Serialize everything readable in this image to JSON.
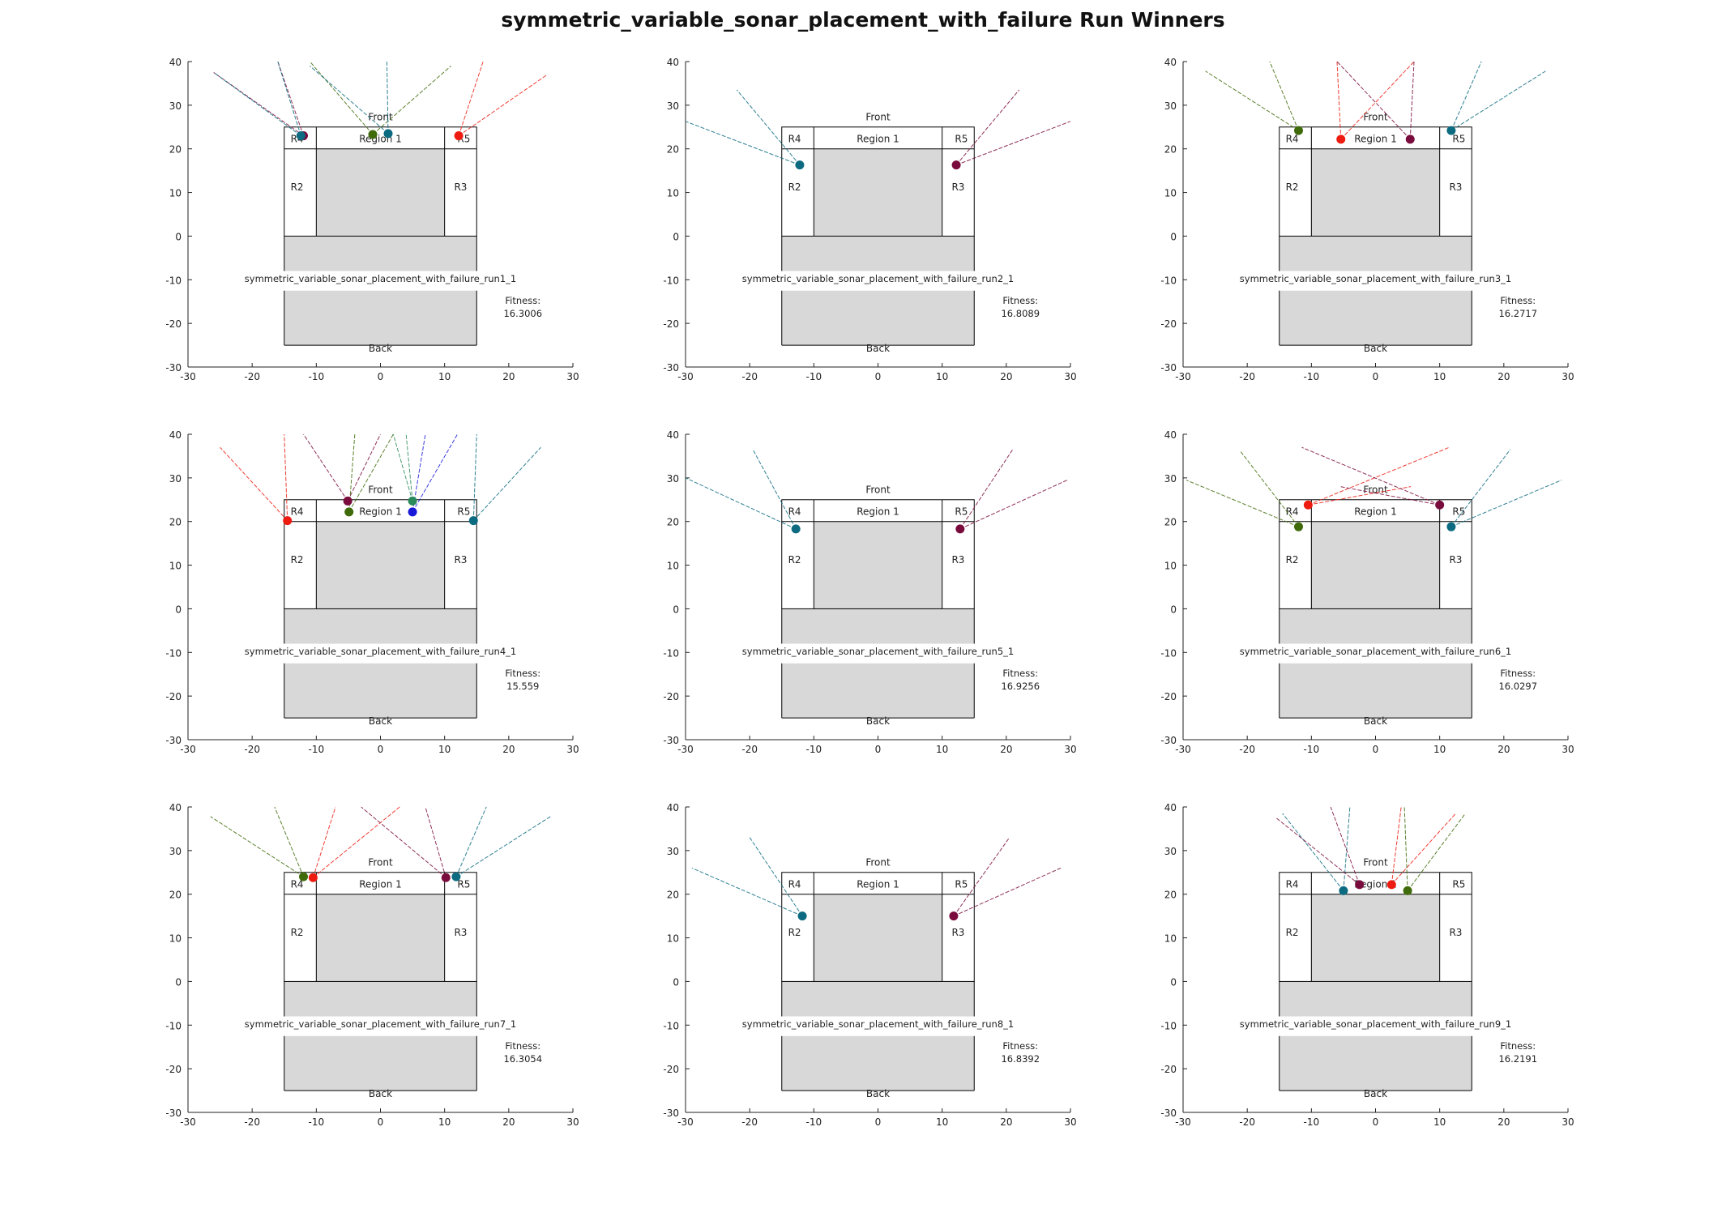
{
  "figure": {
    "title": "symmetric_variable_sonar_placement_with_failure Run Winners"
  },
  "labels": {
    "front": "Front",
    "back": "Back",
    "region1": "Region 1",
    "r2": "R2",
    "r3": "R3",
    "r4": "R4",
    "r5": "R5",
    "fitness_label": "Fitness:"
  },
  "colors": {
    "teal": "#0c6b80",
    "maroon": "#7a0c3d",
    "red": "#ee1b10",
    "olive": "#3f6b0a",
    "blue": "#1818d8",
    "green": "#2a8a5a",
    "purple": "#6a3aa8",
    "grey_fill": "#d8d8d8",
    "outline": "#000000"
  },
  "chart_data": [
    {
      "type": "scatter",
      "name": "symmetric_variable_sonar_placement_with_failure_run1_1",
      "fitness": "16.3006",
      "xlim": [
        -30,
        30
      ],
      "ylim": [
        -30,
        40
      ],
      "xticks": [
        -30,
        -20,
        -10,
        0,
        10,
        20,
        30
      ],
      "yticks": [
        -30,
        -20,
        -10,
        0,
        10,
        20,
        30,
        40
      ],
      "sensors": [
        {
          "x": -12,
          "y": 23,
          "color": "maroon",
          "beams": [
            [
              -26,
              37.5
            ],
            [
              -16,
              40
            ]
          ]
        },
        {
          "x": -12.4,
          "y": 23,
          "color": "teal",
          "beams": [
            [
              -26,
              37.5
            ],
            [
              -16,
              40
            ]
          ]
        },
        {
          "x": -1.2,
          "y": 23.3,
          "color": "olive",
          "beams": [
            [
              -11,
              40
            ],
            [
              11,
              39
            ]
          ]
        },
        {
          "x": 1.2,
          "y": 23.5,
          "color": "teal",
          "beams": [
            [
              -11,
              39
            ],
            [
              1,
              40
            ]
          ]
        },
        {
          "x": 12.2,
          "y": 23,
          "color": "red",
          "beams": [
            [
              16,
              40
            ],
            [
              26,
              37
            ]
          ]
        }
      ]
    },
    {
      "type": "scatter",
      "name": "symmetric_variable_sonar_placement_with_failure_run2_1",
      "fitness": "16.8089",
      "xlim": [
        -30,
        30
      ],
      "ylim": [
        -30,
        40
      ],
      "xticks": [
        -30,
        -20,
        -10,
        0,
        10,
        20,
        30
      ],
      "yticks": [
        -30,
        -20,
        -10,
        0,
        10,
        20,
        30,
        40
      ],
      "sensors": [
        {
          "x": -12.2,
          "y": 16.3,
          "color": "teal",
          "beams": [
            [
              -30,
              26.3
            ],
            [
              -22,
              33.5
            ]
          ]
        },
        {
          "x": 12.2,
          "y": 16.3,
          "color": "maroon",
          "beams": [
            [
              22,
              33.5
            ],
            [
              30,
              26.3
            ]
          ]
        }
      ]
    },
    {
      "type": "scatter",
      "name": "symmetric_variable_sonar_placement_with_failure_run3_1",
      "fitness": "16.2717",
      "xlim": [
        -30,
        30
      ],
      "ylim": [
        -30,
        40
      ],
      "xticks": [
        -30,
        -20,
        -10,
        0,
        10,
        20,
        30
      ],
      "yticks": [
        -30,
        -20,
        -10,
        0,
        10,
        20,
        30,
        40
      ],
      "sensors": [
        {
          "x": -12,
          "y": 24.2,
          "color": "olive",
          "beams": [
            [
              -26.5,
              37.8
            ],
            [
              -16.5,
              40
            ]
          ]
        },
        {
          "x": -5.4,
          "y": 22.2,
          "color": "red",
          "beams": [
            [
              -6,
              40
            ],
            [
              6,
              40
            ]
          ]
        },
        {
          "x": 5.4,
          "y": 22.2,
          "color": "maroon",
          "beams": [
            [
              -6,
              40
            ],
            [
              6,
              40
            ]
          ]
        },
        {
          "x": 11.8,
          "y": 24.2,
          "color": "teal",
          "beams": [
            [
              16.5,
              40
            ],
            [
              26.5,
              37.8
            ]
          ]
        }
      ]
    },
    {
      "type": "scatter",
      "name": "symmetric_variable_sonar_placement_with_failure_run4_1",
      "fitness": "15.559",
      "xlim": [
        -30,
        30
      ],
      "ylim": [
        -30,
        40
      ],
      "xticks": [
        -30,
        -20,
        -10,
        0,
        10,
        20,
        30
      ],
      "yticks": [
        -30,
        -20,
        -10,
        0,
        10,
        20,
        30,
        40
      ],
      "sensors": [
        {
          "x": -14.5,
          "y": 20.2,
          "color": "red",
          "beams": [
            [
              -25,
              37
            ],
            [
              -15,
              40
            ]
          ]
        },
        {
          "x": -5.1,
          "y": 24.7,
          "color": "maroon",
          "beams": [
            [
              -12,
              40
            ],
            [
              0,
              40
            ]
          ]
        },
        {
          "x": -4.9,
          "y": 22.2,
          "color": "olive",
          "beams": [
            [
              -4,
              40
            ],
            [
              2,
              40
            ]
          ]
        },
        {
          "x": 5.0,
          "y": 24.7,
          "color": "green",
          "beams": [
            [
              2,
              40
            ],
            [
              4,
              40
            ]
          ]
        },
        {
          "x": 5.0,
          "y": 22.2,
          "color": "blue",
          "beams": [
            [
              7,
              40
            ],
            [
              12,
              40
            ]
          ]
        },
        {
          "x": 14.5,
          "y": 20.2,
          "color": "teal",
          "beams": [
            [
              15,
              40
            ],
            [
              25,
              37
            ]
          ]
        }
      ]
    },
    {
      "type": "scatter",
      "name": "symmetric_variable_sonar_placement_with_failure_run5_1",
      "fitness": "16.9256",
      "xlim": [
        -30,
        30
      ],
      "ylim": [
        -30,
        40
      ],
      "xticks": [
        -30,
        -20,
        -10,
        0,
        10,
        20,
        30
      ],
      "yticks": [
        -30,
        -20,
        -10,
        0,
        10,
        20,
        30,
        40
      ],
      "sensors": [
        {
          "x": -12.8,
          "y": 18.3,
          "color": "teal",
          "beams": [
            [
              -30,
              30
            ],
            [
              -19.5,
              36.5
            ]
          ]
        },
        {
          "x": 12.8,
          "y": 18.3,
          "color": "maroon",
          "beams": [
            [
              21,
              36.5
            ],
            [
              29.5,
              29.5
            ]
          ]
        }
      ]
    },
    {
      "type": "scatter",
      "name": "symmetric_variable_sonar_placement_with_failure_run6_1",
      "fitness": "16.0297",
      "xlim": [
        -30,
        30
      ],
      "ylim": [
        -30,
        40
      ],
      "xticks": [
        -30,
        -20,
        -10,
        0,
        10,
        20,
        30
      ],
      "yticks": [
        -30,
        -20,
        -10,
        0,
        10,
        20,
        30,
        40
      ],
      "sensors": [
        {
          "x": -12,
          "y": 18.8,
          "color": "olive",
          "beams": [
            [
              -29.5,
              29.5
            ],
            [
              -21,
              36
            ]
          ]
        },
        {
          "x": -10.5,
          "y": 23.8,
          "color": "red",
          "beams": [
            [
              5.5,
              28
            ],
            [
              11.5,
              37
            ]
          ]
        },
        {
          "x": 10,
          "y": 23.8,
          "color": "maroon",
          "beams": [
            [
              -5.5,
              28
            ],
            [
              -11.5,
              37
            ]
          ]
        },
        {
          "x": 11.8,
          "y": 18.8,
          "color": "teal",
          "beams": [
            [
              21,
              36.5
            ],
            [
              29,
              29.5
            ]
          ]
        }
      ]
    },
    {
      "type": "scatter",
      "name": "symmetric_variable_sonar_placement_with_failure_run7_1",
      "fitness": "16.3054",
      "xlim": [
        -30,
        30
      ],
      "ylim": [
        -30,
        40
      ],
      "xticks": [
        -30,
        -20,
        -10,
        0,
        10,
        20,
        30
      ],
      "yticks": [
        -30,
        -20,
        -10,
        0,
        10,
        20,
        30,
        40
      ],
      "sensors": [
        {
          "x": -12,
          "y": 24,
          "color": "olive",
          "beams": [
            [
              -26.5,
              37.8
            ],
            [
              -16.5,
              40
            ]
          ]
        },
        {
          "x": -10.5,
          "y": 23.8,
          "color": "red",
          "beams": [
            [
              -7,
              40
            ],
            [
              3,
              40
            ]
          ]
        },
        {
          "x": 10.2,
          "y": 23.8,
          "color": "maroon",
          "beams": [
            [
              -3,
              40
            ],
            [
              7,
              40
            ]
          ]
        },
        {
          "x": 11.8,
          "y": 24,
          "color": "teal",
          "beams": [
            [
              16.5,
              40
            ],
            [
              26.5,
              37.8
            ]
          ]
        }
      ]
    },
    {
      "type": "scatter",
      "name": "symmetric_variable_sonar_placement_with_failure_run8_1",
      "fitness": "16.8392",
      "xlim": [
        -30,
        30
      ],
      "ylim": [
        -30,
        40
      ],
      "xticks": [
        -30,
        -20,
        -10,
        0,
        10,
        20,
        30
      ],
      "yticks": [
        -30,
        -20,
        -10,
        0,
        10,
        20,
        30,
        40
      ],
      "sensors": [
        {
          "x": -11.8,
          "y": 15,
          "color": "teal",
          "beams": [
            [
              -29,
              26
            ],
            [
              -20,
              33
            ]
          ]
        },
        {
          "x": 11.8,
          "y": 15,
          "color": "maroon",
          "beams": [
            [
              20.5,
              33
            ],
            [
              28.5,
              26
            ]
          ]
        }
      ]
    },
    {
      "type": "scatter",
      "name": "symmetric_variable_sonar_placement_with_failure_run9_1",
      "fitness": "16.2191",
      "xlim": [
        -30,
        30
      ],
      "ylim": [
        -30,
        40
      ],
      "xticks": [
        -30,
        -20,
        -10,
        0,
        10,
        20,
        30
      ],
      "yticks": [
        -30,
        -20,
        -10,
        0,
        10,
        20,
        30,
        40
      ],
      "sensors": [
        {
          "x": -5,
          "y": 20.8,
          "color": "teal",
          "beams": [
            [
              -14.5,
              38.5
            ],
            [
              -4,
              40
            ]
          ]
        },
        {
          "x": -2.5,
          "y": 22.2,
          "color": "maroon",
          "beams": [
            [
              -15.5,
              37.5
            ],
            [
              -7,
              40
            ]
          ]
        },
        {
          "x": 2.5,
          "y": 22.2,
          "color": "red",
          "beams": [
            [
              12.5,
              38.5
            ],
            [
              4,
              40
            ]
          ]
        },
        {
          "x": 5,
          "y": 20.8,
          "color": "olive",
          "beams": [
            [
              14,
              38.5
            ],
            [
              4.5,
              40
            ]
          ]
        }
      ]
    }
  ]
}
